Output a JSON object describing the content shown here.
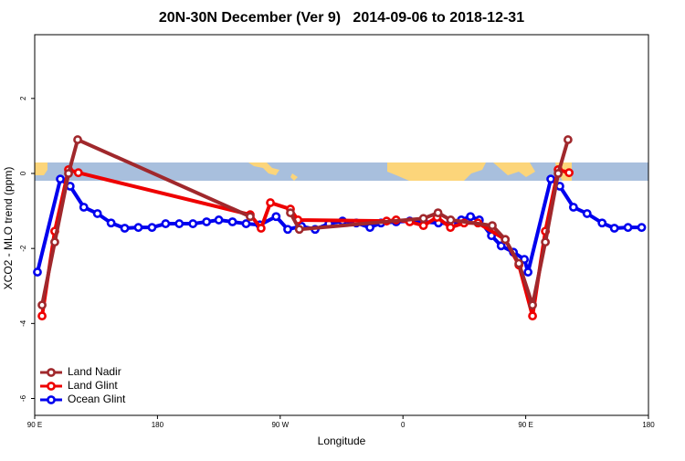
{
  "chart_data": {
    "type": "line",
    "title": "20N-30N December (Ver 9)   2014-09-06 to 2018-12-31",
    "xlabel": "Longitude",
    "ylabel": "XCO2 - MLO trend (ppm)",
    "xlim": [
      90,
      540
    ],
    "ylim": [
      -6.45,
      3.7
    ],
    "xticks": [
      {
        "value": 90,
        "label": "90 E"
      },
      {
        "value": 180,
        "label": "180"
      },
      {
        "value": 270,
        "label": "90 W"
      },
      {
        "value": 360,
        "label": "0"
      },
      {
        "value": 450,
        "label": "90 E"
      },
      {
        "value": 540,
        "label": "180"
      }
    ],
    "yticks": [
      2,
      0,
      -2,
      -4,
      -6
    ],
    "legend": "bottom-left",
    "series": [
      {
        "name": "Land Nadir",
        "color": "#a0282c",
        "x": [
          95.4,
          104.7,
          114.8,
          121.5,
          248,
          256,
          277.5,
          284,
          375,
          385.7,
          395,
          425.5,
          435,
          445,
          455,
          464.4,
          473.8,
          481
        ],
        "values": [
          -3.51,
          -1.83,
          0,
          0.9,
          -1.15,
          null,
          -1.05,
          -1.49,
          -1.2,
          -1.05,
          -1.24,
          -1.39,
          -1.76,
          -2.4,
          -3.51,
          -1.83,
          0,
          0.9
        ]
      },
      {
        "name": "Land Glint",
        "color": "#ee0000",
        "x": [
          95.4,
          104.7,
          114.8,
          122,
          248,
          256,
          262.8,
          277.5,
          283,
          348,
          355,
          365,
          375,
          385,
          394.8,
          404.8,
          415,
          435,
          445,
          455,
          464.4,
          473.8,
          481.8
        ],
        "values": [
          -3.8,
          -1.54,
          0.1,
          0.02,
          -1.1,
          -1.46,
          -0.78,
          -0.95,
          -1.24,
          -1.27,
          -1.24,
          -1.29,
          -1.39,
          -1.17,
          -1.44,
          -1.32,
          -1.32,
          -1.76,
          -2.44,
          -3.8,
          -1.54,
          0.1,
          0.02
        ]
      },
      {
        "name": "Ocean Glint",
        "color": "#0000ee",
        "x": [
          92,
          108.8,
          116,
          126,
          136,
          146,
          156,
          166,
          176,
          186,
          196,
          206,
          216,
          225,
          235,
          245,
          255,
          267,
          275.5,
          285.6,
          295.6,
          305.7,
          315.7,
          325.8,
          335.8,
          343.9,
          355,
          365,
          375,
          386,
          396,
          402.8,
          409.5,
          416,
          424.9,
          432,
          441,
          449,
          451.7,
          468.4,
          475,
          485,
          495,
          506,
          515,
          525,
          535
        ],
        "values": [
          -2.63,
          -0.15,
          -0.34,
          -0.9,
          -1.07,
          -1.32,
          -1.46,
          -1.44,
          -1.44,
          -1.34,
          -1.34,
          -1.34,
          -1.29,
          -1.24,
          -1.29,
          -1.34,
          -1.37,
          -1.15,
          -1.49,
          -1.41,
          -1.49,
          -1.34,
          -1.27,
          -1.32,
          -1.44,
          -1.32,
          -1.29,
          -1.27,
          -1.29,
          -1.32,
          -1.34,
          -1.24,
          -1.15,
          -1.24,
          -1.66,
          -1.93,
          -2.1,
          -2.29,
          -2.63,
          -0.15,
          -0.34,
          -0.9,
          -1.07,
          -1.32,
          -1.46,
          -1.44,
          -1.44
        ]
      }
    ]
  }
}
